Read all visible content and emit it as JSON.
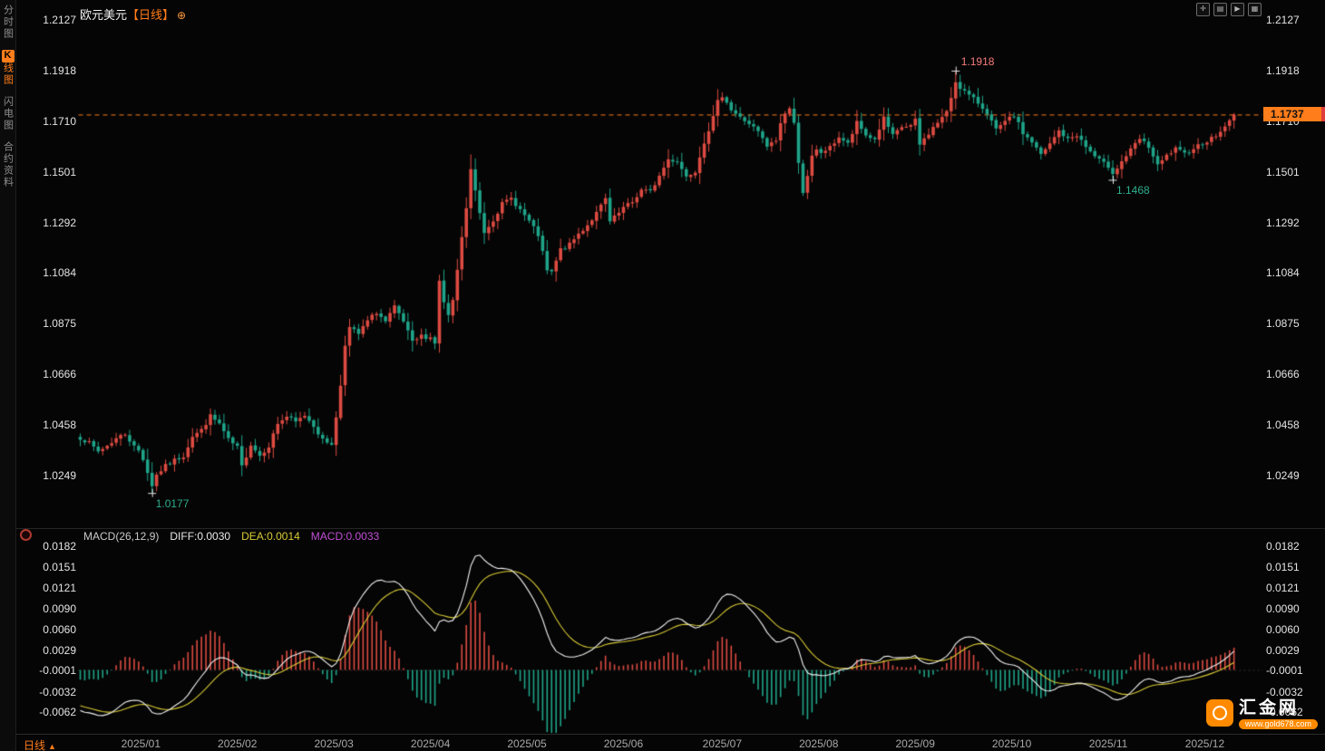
{
  "app": {
    "symbol": "欧元美元",
    "period_tag": "【日线】"
  },
  "header": {
    "settings_icon": "⊕"
  },
  "sidebar": {
    "items": [
      {
        "name": "sidebar-tab-intraday-chart",
        "label": "分时图",
        "active": false
      },
      {
        "name": "sidebar-tab-kline-chart",
        "label": "K线图",
        "active": true
      },
      {
        "name": "sidebar-tab-lightning-chart",
        "label": "闪电图",
        "active": false
      },
      {
        "name": "sidebar-tab-contract-info",
        "label": "合约资料",
        "active": false
      }
    ]
  },
  "toolbar": {
    "icons": [
      {
        "name": "crosshair-tool-icon",
        "glyph": "✛"
      },
      {
        "name": "layout-split-icon",
        "glyph": "▤"
      },
      {
        "name": "play-forward-icon",
        "glyph": "▶"
      },
      {
        "name": "layout-grid-icon",
        "glyph": "▦"
      }
    ]
  },
  "indicator": {
    "name": "MACD(26,12,9)",
    "diff_label": "DIFF:0.0030",
    "dea_label": "DEA:0.0014",
    "macd_label": "MACD:0.0033"
  },
  "current_price": {
    "value": "1.1737"
  },
  "footer": {
    "period_label": "日线",
    "dropdown_icon": "▲"
  },
  "watermark": {
    "brand": "汇金网",
    "url": "www.gold678.com"
  },
  "colors": {
    "up": "#dd4b42",
    "down": "#1fa489",
    "accent": "#ff7d1a",
    "diff_line": "#f2f2f2",
    "dea_line": "#d8ca35",
    "annotation_high": "#f87c7c",
    "annotation_low": "#2fae8c",
    "axis_text": "#e3e3e3",
    "time_text": "#a8a8a8"
  },
  "chart_data": {
    "type": "candlestick",
    "symbol": "EUR/USD 欧元美元",
    "timeframe": "daily",
    "title": "欧元美元【日线】",
    "price_axis_ticks": [
      "1.2127",
      "1.1918",
      "1.1710",
      "1.1501",
      "1.1292",
      "1.1084",
      "1.0875",
      "1.0666",
      "1.0458",
      "1.0249"
    ],
    "macd_axis_ticks": [
      "0.0182",
      "0.0151",
      "0.0121",
      "0.0090",
      "0.0060",
      "0.0029",
      "-0.0001",
      "-0.0032",
      "-0.0062"
    ],
    "time_labels": [
      "2025/01",
      "2025/02",
      "2025/03",
      "2025/04",
      "2025/05",
      "2025/06",
      "2025/07",
      "2025/08",
      "2025/09",
      "2025/10",
      "2025/11",
      "2025/12"
    ],
    "time_label_days": [
      13.5,
      35,
      56.5,
      78,
      99.5,
      121,
      143,
      164.5,
      186,
      207.5,
      229,
      250.5
    ],
    "candle_count": 258,
    "last_price": 1.1737,
    "pre_history": [
      [
        -30,
        1.073
      ],
      [
        -22,
        1.062
      ],
      [
        -14,
        1.056
      ],
      [
        -8,
        1.051
      ],
      [
        -3,
        1.0455
      ],
      [
        -1,
        1.042
      ]
    ],
    "close_path": [
      [
        0,
        1.0405
      ],
      [
        2,
        1.0382
      ],
      [
        4,
        1.0348
      ],
      [
        6,
        1.0372
      ],
      [
        8,
        1.0402
      ],
      [
        10,
        1.0422
      ],
      [
        12,
        1.0368
      ],
      [
        13,
        1.0352
      ],
      [
        14,
        1.0318
      ],
      [
        15,
        1.0262
      ],
      [
        16,
        1.0205
      ],
      [
        17,
        1.0252
      ],
      [
        19,
        1.0288
      ],
      [
        21,
        1.0312
      ],
      [
        23,
        1.033
      ],
      [
        25,
        1.0412
      ],
      [
        27,
        1.0436
      ],
      [
        29,
        1.0494
      ],
      [
        31,
        1.0462
      ],
      [
        33,
        1.0395
      ],
      [
        35,
        1.0364
      ],
      [
        36,
        1.0285
      ],
      [
        38,
        1.0378
      ],
      [
        40,
        1.0332
      ],
      [
        42,
        1.0372
      ],
      [
        44,
        1.0464
      ],
      [
        46,
        1.0492
      ],
      [
        48,
        1.0468
      ],
      [
        50,
        1.0498
      ],
      [
        52,
        1.0456
      ],
      [
        54,
        1.0394
      ],
      [
        56,
        1.0382
      ],
      [
        57,
        1.0486
      ],
      [
        58,
        1.0622
      ],
      [
        59,
        1.0792
      ],
      [
        60,
        1.0858
      ],
      [
        62,
        1.0832
      ],
      [
        64,
        1.0886
      ],
      [
        66,
        1.0922
      ],
      [
        68,
        1.0882
      ],
      [
        70,
        1.0942
      ],
      [
        72,
        1.0882
      ],
      [
        74,
        1.0796
      ],
      [
        76,
        1.0824
      ],
      [
        78,
        1.0818
      ],
      [
        79,
        1.0796
      ],
      [
        80,
        1.1048
      ],
      [
        81,
        1.0962
      ],
      [
        82,
        1.0906
      ],
      [
        83,
        1.0964
      ],
      [
        84,
        1.1096
      ],
      [
        85,
        1.1226
      ],
      [
        86,
        1.1352
      ],
      [
        87,
        1.1512
      ],
      [
        88,
        1.142
      ],
      [
        89,
        1.133
      ],
      [
        90,
        1.1252
      ],
      [
        92,
        1.1305
      ],
      [
        94,
        1.1368
      ],
      [
        96,
        1.1392
      ],
      [
        98,
        1.1345
      ],
      [
        100,
        1.1296
      ],
      [
        102,
        1.124
      ],
      [
        104,
        1.1092
      ],
      [
        105,
        1.1085
      ],
      [
        107,
        1.118
      ],
      [
        109,
        1.12
      ],
      [
        111,
        1.1245
      ],
      [
        113,
        1.1282
      ],
      [
        115,
        1.133
      ],
      [
        117,
        1.1388
      ],
      [
        118,
        1.1294
      ],
      [
        120,
        1.133
      ],
      [
        121,
        1.1352
      ],
      [
        123,
        1.1376
      ],
      [
        125,
        1.1426
      ],
      [
        127,
        1.1418
      ],
      [
        129,
        1.1484
      ],
      [
        131,
        1.1552
      ],
      [
        133,
        1.1545
      ],
      [
        135,
        1.1482
      ],
      [
        137,
        1.1506
      ],
      [
        139,
        1.1626
      ],
      [
        141,
        1.1724
      ],
      [
        142,
        1.1788
      ],
      [
        143,
        1.1808
      ],
      [
        144,
        1.1792
      ],
      [
        145,
        1.1756
      ],
      [
        147,
        1.1724
      ],
      [
        149,
        1.17
      ],
      [
        151,
        1.1665
      ],
      [
        153,
        1.1604
      ],
      [
        155,
        1.163
      ],
      [
        156,
        1.17
      ],
      [
        157,
        1.1745
      ],
      [
        158,
        1.1762
      ],
      [
        159,
        1.1698
      ],
      [
        160,
        1.1545
      ],
      [
        161,
        1.1418
      ],
      [
        162,
        1.1478
      ],
      [
        163,
        1.1562
      ],
      [
        164,
        1.1588
      ],
      [
        165,
        1.158
      ],
      [
        167,
        1.16
      ],
      [
        169,
        1.1645
      ],
      [
        171,
        1.1615
      ],
      [
        173,
        1.1702
      ],
      [
        175,
        1.1652
      ],
      [
        177,
        1.1635
      ],
      [
        179,
        1.1722
      ],
      [
        181,
        1.1648
      ],
      [
        183,
        1.1685
      ],
      [
        185,
        1.169
      ],
      [
        186,
        1.1712
      ],
      [
        187,
        1.1612
      ],
      [
        189,
        1.166
      ],
      [
        191,
        1.1705
      ],
      [
        193,
        1.1745
      ],
      [
        195,
        1.187
      ],
      [
        196,
        1.185
      ],
      [
        198,
        1.1815
      ],
      [
        200,
        1.1785
      ],
      [
        202,
        1.1745
      ],
      [
        204,
        1.1672
      ],
      [
        206,
        1.1705
      ],
      [
        208,
        1.1734
      ],
      [
        210,
        1.166
      ],
      [
        212,
        1.1624
      ],
      [
        214,
        1.157
      ],
      [
        216,
        1.1614
      ],
      [
        218,
        1.167
      ],
      [
        220,
        1.1634
      ],
      [
        222,
        1.1654
      ],
      [
        224,
        1.1604
      ],
      [
        226,
        1.1564
      ],
      [
        228,
        1.1534
      ],
      [
        229,
        1.1524
      ],
      [
        230,
        1.1492
      ],
      [
        232,
        1.1544
      ],
      [
        234,
        1.159
      ],
      [
        236,
        1.1636
      ],
      [
        238,
        1.1604
      ],
      [
        240,
        1.1524
      ],
      [
        242,
        1.1566
      ],
      [
        244,
        1.1594
      ],
      [
        246,
        1.1574
      ],
      [
        248,
        1.16
      ],
      [
        250,
        1.162
      ],
      [
        252,
        1.1638
      ],
      [
        254,
        1.1664
      ],
      [
        255,
        1.1692
      ],
      [
        256,
        1.1708
      ],
      [
        257,
        1.1737
      ]
    ],
    "extreme_overrides": [
      {
        "day": 16,
        "low": 1.0177
      },
      {
        "day": 87,
        "high": 1.1573
      },
      {
        "day": 143,
        "high": 1.1829
      },
      {
        "day": 195,
        "high": 1.1918
      },
      {
        "day": 230,
        "low": 1.1468
      }
    ],
    "annotations": [
      {
        "day": 16,
        "price": 1.0177,
        "label": "1.0177",
        "kind": "low"
      },
      {
        "day": 195,
        "price": 1.1918,
        "label": "1.1918",
        "kind": "high"
      },
      {
        "day": 230,
        "price": 1.1468,
        "label": "1.1468",
        "kind": "low"
      }
    ],
    "macd_params": [
      26,
      12,
      9
    ],
    "macd_last": {
      "diff": 0.003,
      "dea": 0.0014,
      "macd": 0.0033
    },
    "price_axis_range": {
      "top": 1.2209,
      "bottom": 1.0083
    },
    "macd_axis_range": {
      "top": 0.0186,
      "bottom": -0.0094
    },
    "grid": false,
    "legend_position": "top-left-of-macd-panel"
  }
}
